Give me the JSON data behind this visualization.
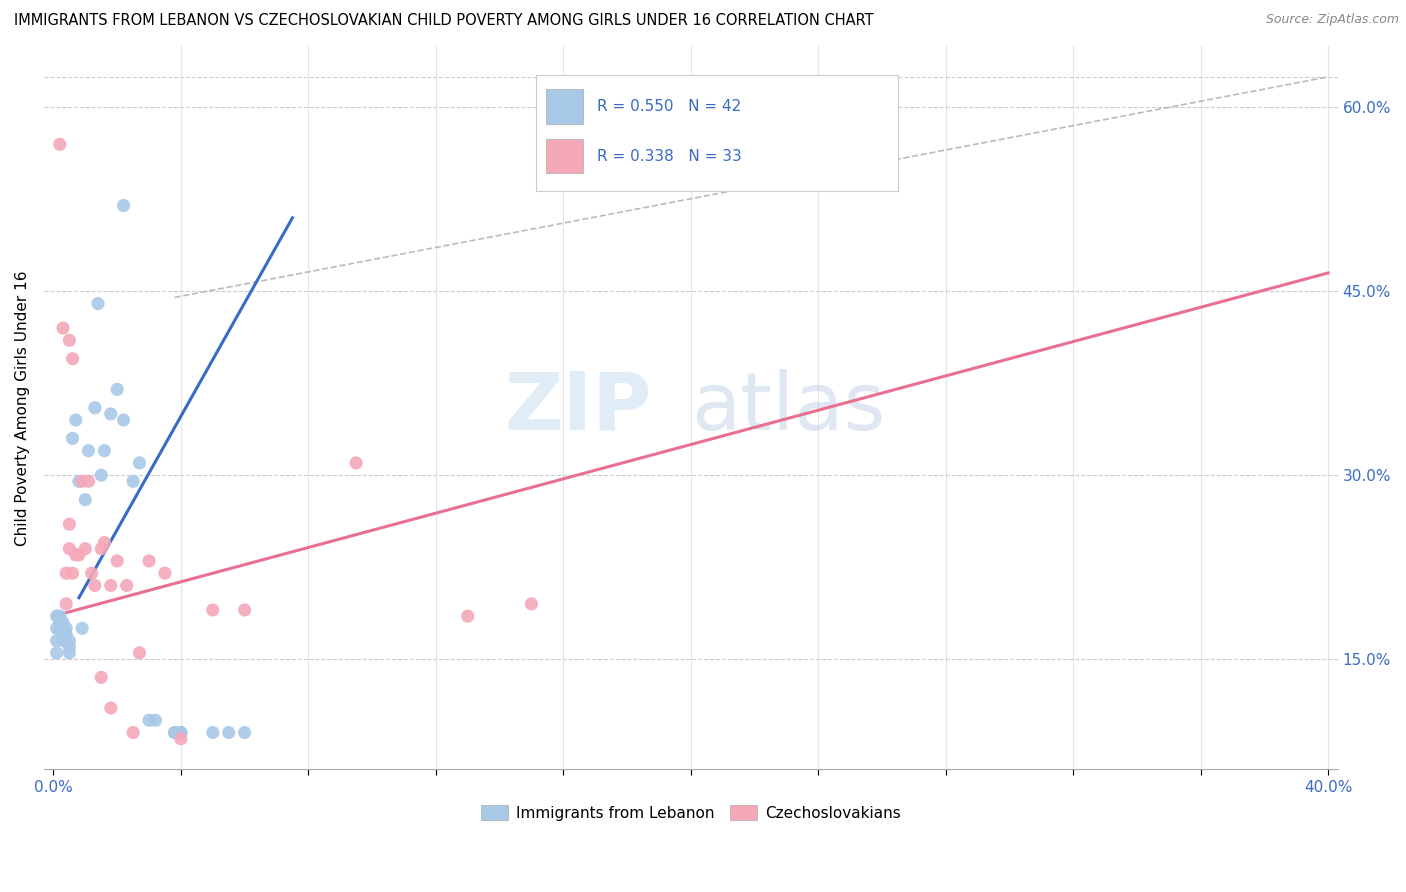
{
  "title": "IMMIGRANTS FROM LEBANON VS CZECHOSLOVAKIAN CHILD POVERTY AMONG GIRLS UNDER 16 CORRELATION CHART",
  "source": "Source: ZipAtlas.com",
  "ylabel": "Child Poverty Among Girls Under 16",
  "right_yticks": [
    0.15,
    0.3,
    0.45,
    0.6
  ],
  "legend_blue_r": "0.550",
  "legend_blue_n": "42",
  "legend_pink_r": "0.338",
  "legend_pink_n": "33",
  "legend_blue_label": "Immigrants from Lebanon",
  "legend_pink_label": "Czechoslovakians",
  "blue_color": "#A8C8E8",
  "pink_color": "#F4A8B8",
  "regression_blue_color": "#3A6BC4",
  "regression_pink_color": "#E87090",
  "watermark_zip": "ZIP",
  "watermark_atlas": "atlas",
  "xlim": [
    0.0,
    0.4
  ],
  "ylim": [
    0.06,
    0.65
  ],
  "blue_line_x": [
    0.008,
    0.075
  ],
  "blue_line_y": [
    0.2,
    0.51
  ],
  "pink_line_x": [
    0.0,
    0.4
  ],
  "pink_line_y": [
    0.185,
    0.465
  ],
  "dash_line_x": [
    0.038,
    0.4
  ],
  "dash_line_y": [
    0.445,
    0.625
  ],
  "blue_scatter": [
    [
      0.001,
      0.185
    ],
    [
      0.001,
      0.175
    ],
    [
      0.001,
      0.165
    ],
    [
      0.001,
      0.155
    ],
    [
      0.002,
      0.185
    ],
    [
      0.002,
      0.18
    ],
    [
      0.002,
      0.175
    ],
    [
      0.003,
      0.18
    ],
    [
      0.003,
      0.175
    ],
    [
      0.003,
      0.17
    ],
    [
      0.003,
      0.165
    ],
    [
      0.004,
      0.175
    ],
    [
      0.004,
      0.17
    ],
    [
      0.004,
      0.165
    ],
    [
      0.005,
      0.165
    ],
    [
      0.005,
      0.16
    ],
    [
      0.005,
      0.155
    ],
    [
      0.006,
      0.33
    ],
    [
      0.007,
      0.345
    ],
    [
      0.008,
      0.295
    ],
    [
      0.009,
      0.175
    ],
    [
      0.01,
      0.28
    ],
    [
      0.011,
      0.32
    ],
    [
      0.013,
      0.355
    ],
    [
      0.014,
      0.44
    ],
    [
      0.015,
      0.3
    ],
    [
      0.016,
      0.32
    ],
    [
      0.018,
      0.35
    ],
    [
      0.02,
      0.37
    ],
    [
      0.022,
      0.345
    ],
    [
      0.025,
      0.295
    ],
    [
      0.027,
      0.31
    ],
    [
      0.03,
      0.1
    ],
    [
      0.032,
      0.1
    ],
    [
      0.038,
      0.09
    ],
    [
      0.04,
      0.09
    ],
    [
      0.022,
      0.52
    ],
    [
      0.038,
      0.09
    ],
    [
      0.04,
      0.09
    ],
    [
      0.05,
      0.09
    ],
    [
      0.055,
      0.09
    ],
    [
      0.06,
      0.09
    ]
  ],
  "pink_scatter": [
    [
      0.002,
      0.57
    ],
    [
      0.003,
      0.42
    ],
    [
      0.005,
      0.41
    ],
    [
      0.006,
      0.395
    ],
    [
      0.004,
      0.195
    ],
    [
      0.004,
      0.22
    ],
    [
      0.005,
      0.26
    ],
    [
      0.005,
      0.24
    ],
    [
      0.006,
      0.22
    ],
    [
      0.007,
      0.235
    ],
    [
      0.008,
      0.235
    ],
    [
      0.009,
      0.295
    ],
    [
      0.01,
      0.24
    ],
    [
      0.011,
      0.295
    ],
    [
      0.012,
      0.22
    ],
    [
      0.013,
      0.21
    ],
    [
      0.015,
      0.24
    ],
    [
      0.016,
      0.245
    ],
    [
      0.018,
      0.21
    ],
    [
      0.02,
      0.23
    ],
    [
      0.023,
      0.21
    ],
    [
      0.027,
      0.155
    ],
    [
      0.03,
      0.23
    ],
    [
      0.015,
      0.135
    ],
    [
      0.018,
      0.11
    ],
    [
      0.035,
      0.22
    ],
    [
      0.04,
      0.085
    ],
    [
      0.05,
      0.19
    ],
    [
      0.06,
      0.19
    ],
    [
      0.095,
      0.31
    ],
    [
      0.13,
      0.185
    ],
    [
      0.15,
      0.195
    ],
    [
      0.025,
      0.09
    ]
  ]
}
